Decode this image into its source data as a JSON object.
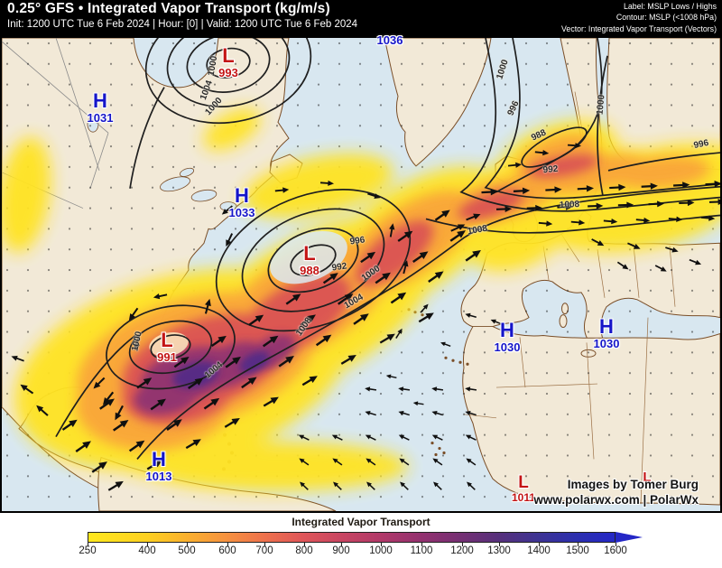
{
  "header": {
    "title": "0.25° GFS • Integrated Vapor Transport (kg/m/s)",
    "subtitle": "Init: 1200 UTC Tue 6 Feb 2024 | Hour: [0] | Valid: 1200 UTC Tue 6 Feb 2024",
    "info_lines": [
      "Label: MSLP Lows / Highs",
      "Contour: MSLP (<1008 hPa)",
      "Vector: Integrated Vapor Transport (Vectors)"
    ]
  },
  "map": {
    "pressure_centers": [
      {
        "type": "low",
        "letter": "L",
        "value": "993"
      },
      {
        "type": "high",
        "letter": "H",
        "value": "1031"
      },
      {
        "type": "high",
        "letter": "H",
        "value": "1033"
      },
      {
        "type": "low",
        "letter": "L",
        "value": "988"
      },
      {
        "type": "low",
        "letter": "L",
        "value": "991"
      },
      {
        "type": "high",
        "letter": "H",
        "value": "1013"
      },
      {
        "type": "high",
        "letter": "H",
        "value": "1030"
      },
      {
        "type": "high",
        "letter": "H",
        "value": "1030"
      },
      {
        "type": "low",
        "letter": "L",
        "value": "1011"
      },
      {
        "type": "high",
        "letter": "",
        "value": "1036"
      },
      {
        "type": "low",
        "letter": "L",
        "value": ""
      }
    ],
    "contour_labels": [
      "1000",
      "1004",
      "1000",
      "996",
      "992",
      "1000",
      "1004",
      "1000",
      "1004",
      "1008",
      "1000",
      "996",
      "988",
      "992",
      "1000",
      "996",
      "1008",
      "1008"
    ],
    "attribution": {
      "line1": "Images by Tomer Burg",
      "line2": "www.polarwx.com | PolarWx"
    }
  },
  "colorbar": {
    "title": "Integrated Vapor Transport",
    "unit": "kg/m/s",
    "ticks": [
      "250",
      "400",
      "500",
      "600",
      "700",
      "800",
      "900",
      "1000",
      "1100",
      "1200",
      "1300",
      "1400",
      "1500",
      "1600"
    ],
    "colors": [
      "#ffe81e",
      "#fdd021",
      "#fab12e",
      "#f6933f",
      "#ee724c",
      "#df5659",
      "#c84562",
      "#b13969",
      "#94316f",
      "#763073",
      "#57307b",
      "#3e3392",
      "#2c2fae",
      "#2427c6"
    ],
    "range": [
      250,
      1600
    ]
  },
  "colors": {
    "low_label": "#c41414",
    "high_label": "#1515c9",
    "header_bg": "#000000",
    "ocean": "#d8e7f0",
    "land": "#f2e9d7",
    "contour": "#1f1f1f"
  }
}
